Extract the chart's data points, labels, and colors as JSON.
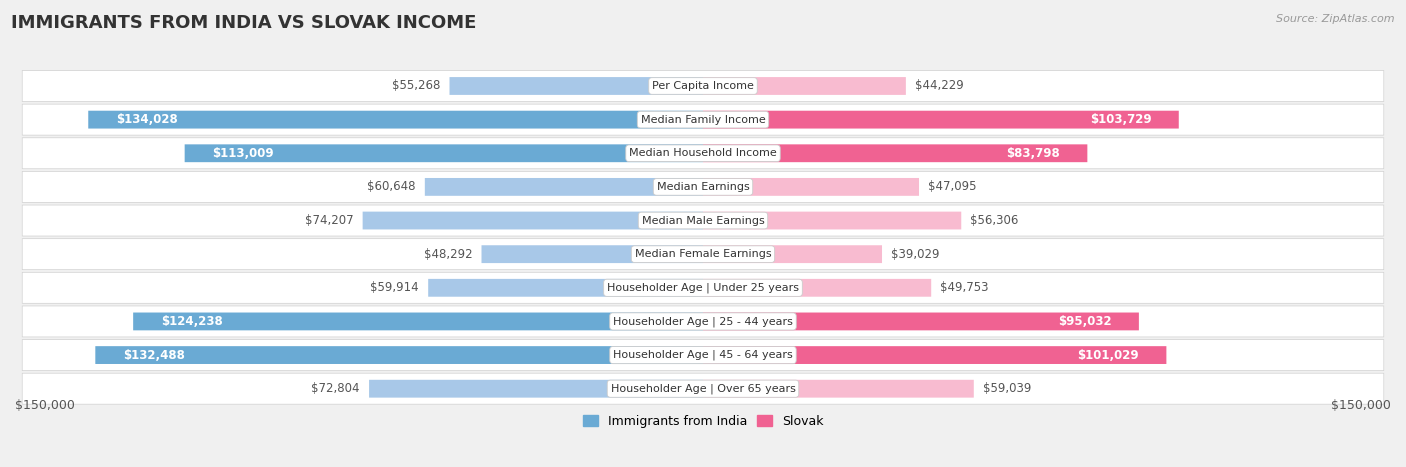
{
  "title": "IMMIGRANTS FROM INDIA VS SLOVAK INCOME",
  "source": "Source: ZipAtlas.com",
  "categories": [
    "Per Capita Income",
    "Median Family Income",
    "Median Household Income",
    "Median Earnings",
    "Median Male Earnings",
    "Median Female Earnings",
    "Householder Age | Under 25 years",
    "Householder Age | 25 - 44 years",
    "Householder Age | 45 - 64 years",
    "Householder Age | Over 65 years"
  ],
  "india_values": [
    55268,
    134028,
    113009,
    60648,
    74207,
    48292,
    59914,
    124238,
    132488,
    72804
  ],
  "slovak_values": [
    44229,
    103729,
    83798,
    47095,
    56306,
    39029,
    49753,
    95032,
    101029,
    59039
  ],
  "india_labels": [
    "$55,268",
    "$134,028",
    "$113,009",
    "$60,648",
    "$74,207",
    "$48,292",
    "$59,914",
    "$124,238",
    "$132,488",
    "$72,804"
  ],
  "slovak_labels": [
    "$44,229",
    "$103,729",
    "$83,798",
    "$47,095",
    "$56,306",
    "$39,029",
    "$49,753",
    "$95,032",
    "$101,029",
    "$59,039"
  ],
  "india_color_light": "#a8c8e8",
  "india_color_dark": "#6aaad4",
  "slovak_color_light": "#f8bbd0",
  "slovak_color_dark": "#f06292",
  "max_value": 150000,
  "background_color": "#f0f0f0",
  "row_bg_color": "#ffffff",
  "row_border_color": "#d0d0d0",
  "legend_india": "Immigrants from India",
  "legend_slovak": "Slovak",
  "xlabel_left": "$150,000",
  "xlabel_right": "$150,000",
  "india_label_threshold": 80000,
  "slovak_label_threshold": 80000,
  "title_fontsize": 13,
  "label_fontsize": 8.5,
  "cat_fontsize": 8,
  "source_fontsize": 8
}
